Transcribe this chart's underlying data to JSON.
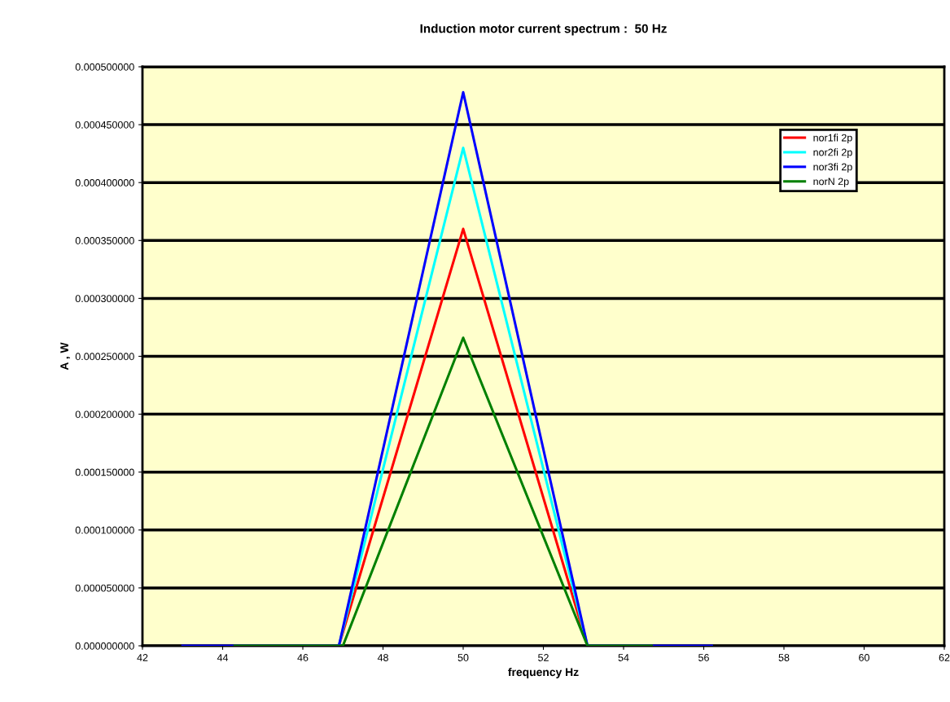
{
  "chart_data": {
    "type": "line",
    "title": "Induction motor current spectrum :  50 Hz",
    "xlabel": "frequency Hz",
    "ylabel": "A , W",
    "series": [
      {
        "name": "nor1fi 2p",
        "color": "#ff0000",
        "x": [
          46.9,
          50,
          53.1
        ],
        "values": [
          0,
          0.00036,
          0
        ]
      },
      {
        "name": "nor2fi 2p",
        "color": "#00ffff",
        "x": [
          46.9,
          50,
          53.1
        ],
        "values": [
          0,
          0.00043,
          0
        ]
      },
      {
        "name": "nor3fi 2p",
        "color": "#0000ff",
        "x": [
          43,
          46.9,
          50,
          53.1,
          56.2
        ],
        "values": [
          0,
          0,
          0.000478,
          0,
          0
        ]
      },
      {
        "name": "norN 2p",
        "color": "#008000",
        "x": [
          44.3,
          47,
          50,
          53.1,
          54.7
        ],
        "values": [
          0,
          0,
          0.000266,
          0,
          0
        ]
      }
    ],
    "xlim": [
      42,
      62
    ],
    "xticks": [
      42,
      44,
      46,
      48,
      50,
      52,
      54,
      56,
      58,
      60,
      62
    ],
    "ylim": [
      0,
      0.0005
    ],
    "yticks": [
      {
        "value": 0,
        "label": "0.000000000"
      },
      {
        "value": 5e-05,
        "label": "0.000050000"
      },
      {
        "value": 0.0001,
        "label": "0.000100000"
      },
      {
        "value": 0.00015,
        "label": "0.000150000"
      },
      {
        "value": 0.0002,
        "label": "0.000200000"
      },
      {
        "value": 0.00025,
        "label": "0.000250000"
      },
      {
        "value": 0.0003,
        "label": "0.000300000"
      },
      {
        "value": 0.00035,
        "label": "0.000350000"
      },
      {
        "value": 0.0004,
        "label": "0.000400000"
      },
      {
        "value": 0.00045,
        "label": "0.000450000"
      },
      {
        "value": 0.0005,
        "label": "0.000500000"
      }
    ],
    "grid": "y",
    "legend": "top right",
    "marker": "none",
    "line_style": "solid"
  }
}
